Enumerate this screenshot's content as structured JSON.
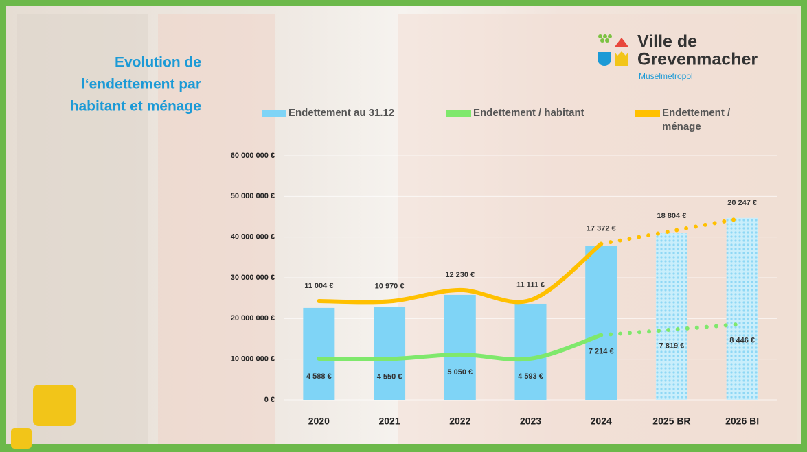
{
  "logo": {
    "name_line1": "Ville de",
    "name_line2": "Grevenmacher",
    "tagline": "Muselmetropol"
  },
  "chart_data": {
    "type": "bar-line",
    "title": [
      "Evolution de",
      "l‘endettement par",
      "habitant et ménage"
    ],
    "categories": [
      "2020",
      "2021",
      "2022",
      "2023",
      "2024",
      "2025 BR",
      "2026 BI"
    ],
    "ylim": [
      0,
      60000000
    ],
    "yticks": [
      {
        "value": 0,
        "label": "0 €"
      },
      {
        "value": 10000000,
        "label": "10 000 000 €"
      },
      {
        "value": 20000000,
        "label": "20 000 000 €"
      },
      {
        "value": 30000000,
        "label": "30 000 000 €"
      },
      {
        "value": 40000000,
        "label": "40 000 000 €"
      },
      {
        "value": 50000000,
        "label": "50 000 000 €"
      },
      {
        "value": 60000000,
        "label": "60 000 000 €"
      }
    ],
    "y2lim": [
      0,
      27200
    ],
    "series": [
      {
        "name": "Endettement au 31.12",
        "type": "bar",
        "color": "#7fd4f6",
        "patterned_from": 5,
        "values": [
          22600000,
          22800000,
          25800000,
          23600000,
          37900000,
          41000000,
          44700000
        ]
      },
      {
        "name": "Endettement / habitant",
        "type": "line",
        "axis": "y2",
        "color": "#7fe86c",
        "dotted_from": 4,
        "values": [
          4588,
          4550,
          5050,
          4593,
          7214,
          7819,
          8446
        ],
        "value_labels": [
          "4 588 €",
          "4 550 €",
          "5 050 €",
          "4 593 €",
          "7 214 €",
          "7 819 €",
          "8 446 €"
        ]
      },
      {
        "name": "Endettement / ménage",
        "type": "line",
        "axis": "y2",
        "color": "#ffc000",
        "dotted_from": 4,
        "values": [
          11004,
          10970,
          12230,
          11111,
          17372,
          18804,
          20247
        ],
        "value_labels": [
          "11 004 €",
          "10 970 €",
          "12 230 €",
          "11 111 €",
          "17 372 €",
          "18 804 €",
          "20 247 €"
        ]
      }
    ]
  }
}
